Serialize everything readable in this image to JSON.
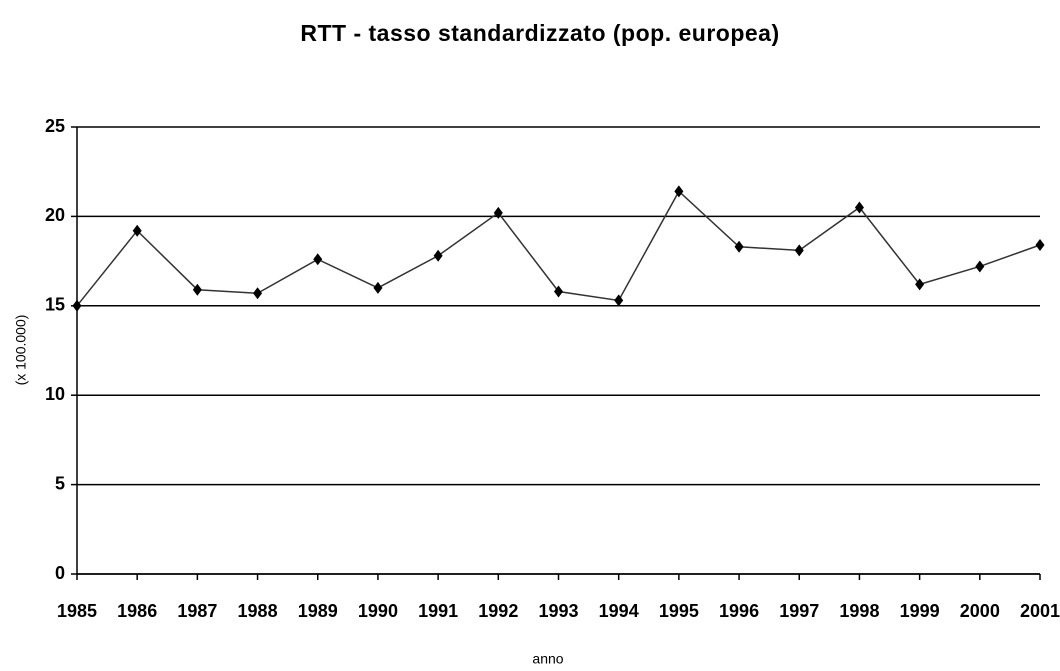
{
  "chart_data": {
    "type": "line",
    "title": "RTT - tasso standardizzato (pop. europea)",
    "x_label": "anno",
    "y_label": "(x 100.000)",
    "x": [
      1985,
      1986,
      1987,
      1988,
      1989,
      1990,
      1991,
      1992,
      1993,
      1994,
      1995,
      1996,
      1997,
      1998,
      1999,
      2000,
      2001
    ],
    "values": [
      15.0,
      19.2,
      15.9,
      15.7,
      17.6,
      16.0,
      17.8,
      20.2,
      15.8,
      15.3,
      21.4,
      18.3,
      18.1,
      20.5,
      16.2,
      17.2,
      18.4
    ],
    "color": "#333333",
    "marker_color": "#000000",
    "xlim": [
      1985,
      2001
    ],
    "xticks": [
      1985,
      1986,
      1987,
      1988,
      1989,
      1990,
      1991,
      1992,
      1993,
      1994,
      1995,
      1996,
      1997,
      1998,
      1999,
      2000,
      2001
    ],
    "ylim": [
      0,
      25
    ],
    "yticks": [
      0,
      5,
      10,
      15,
      20,
      25
    ],
    "grid": true
  }
}
